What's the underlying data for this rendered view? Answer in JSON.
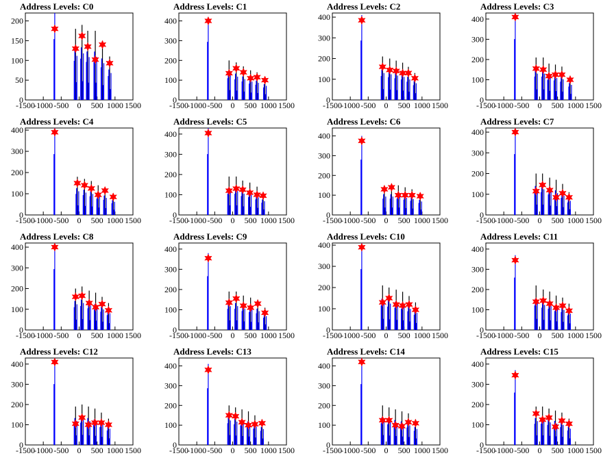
{
  "colors": {
    "histogram": "#0000ff",
    "histogram_peak": "#000000",
    "marker": "#ff0000",
    "axis": "#000000"
  },
  "chart_data": [
    {
      "type": "bar",
      "title": "Address Levels: C0",
      "xlim": [
        -1500,
        1500
      ],
      "ylim": [
        0,
        220
      ],
      "x_ticks": [
        "-1500",
        "-1000",
        "-500",
        "0",
        "500",
        "1000",
        "1500"
      ],
      "y_ticks": [
        0,
        50,
        100,
        150,
        200
      ],
      "peaks": [
        {
          "x": -680,
          "y": 180,
          "h": 220
        },
        {
          "x": -100,
          "y": 130,
          "h": 180
        },
        {
          "x": 80,
          "y": 162,
          "h": 190
        },
        {
          "x": 240,
          "y": 135,
          "h": 175
        },
        {
          "x": 450,
          "y": 102,
          "h": 175
        },
        {
          "x": 650,
          "y": 140,
          "h": 150
        },
        {
          "x": 850,
          "y": 93,
          "h": 110
        }
      ]
    },
    {
      "type": "bar",
      "title": "Address Levels: C1",
      "xlim": [
        -1500,
        1500
      ],
      "ylim": [
        0,
        440
      ],
      "x_ticks": [
        "-1500",
        "-1000",
        "-500",
        "0",
        "500",
        "1000",
        "1500"
      ],
      "y_ticks": [
        0,
        100,
        200,
        300,
        400
      ],
      "peaks": [
        {
          "x": -680,
          "y": 400,
          "h": 420
        },
        {
          "x": -100,
          "y": 135,
          "h": 200
        },
        {
          "x": 100,
          "y": 160,
          "h": 190
        },
        {
          "x": 300,
          "y": 140,
          "h": 170
        },
        {
          "x": 500,
          "y": 110,
          "h": 150
        },
        {
          "x": 680,
          "y": 115,
          "h": 140
        },
        {
          "x": 900,
          "y": 100,
          "h": 115
        }
      ]
    },
    {
      "type": "bar",
      "title": "Address Levels: C2",
      "xlim": [
        -1500,
        1500
      ],
      "ylim": [
        0,
        420
      ],
      "x_ticks": [
        "-1500",
        "-1000",
        "-500",
        "0",
        "500",
        "1000",
        "1500"
      ],
      "y_ticks": [
        0,
        100,
        200,
        300,
        400
      ],
      "peaks": [
        {
          "x": -680,
          "y": 385,
          "h": 410
        },
        {
          "x": -100,
          "y": 160,
          "h": 210
        },
        {
          "x": 100,
          "y": 145,
          "h": 200
        },
        {
          "x": 280,
          "y": 140,
          "h": 190
        },
        {
          "x": 460,
          "y": 130,
          "h": 180
        },
        {
          "x": 620,
          "y": 130,
          "h": 160
        },
        {
          "x": 800,
          "y": 105,
          "h": 130
        }
      ]
    },
    {
      "type": "bar",
      "title": "Address Levels: C3",
      "xlim": [
        -1500,
        1500
      ],
      "ylim": [
        0,
        430
      ],
      "x_ticks": [
        "-1500",
        "-1000",
        "-500",
        "0",
        "500",
        "1000",
        "1500"
      ],
      "y_ticks": [
        0,
        100,
        200,
        300,
        400
      ],
      "peaks": [
        {
          "x": -680,
          "y": 410,
          "h": 430
        },
        {
          "x": -100,
          "y": 155,
          "h": 210
        },
        {
          "x": 100,
          "y": 150,
          "h": 210
        },
        {
          "x": 260,
          "y": 118,
          "h": 180
        },
        {
          "x": 440,
          "y": 125,
          "h": 175
        },
        {
          "x": 620,
          "y": 125,
          "h": 165
        },
        {
          "x": 850,
          "y": 100,
          "h": 120
        }
      ]
    },
    {
      "type": "bar",
      "title": "Address Levels: C4",
      "xlim": [
        -1500,
        1500
      ],
      "ylim": [
        0,
        410
      ],
      "x_ticks": [
        "-1500",
        "-1000",
        "-500",
        "0",
        "500",
        "1000",
        "1500"
      ],
      "y_ticks": [
        0,
        100,
        200,
        300,
        400
      ],
      "peaks": [
        {
          "x": -680,
          "y": 390,
          "h": 410
        },
        {
          "x": -50,
          "y": 150,
          "h": 180
        },
        {
          "x": 150,
          "y": 140,
          "h": 170
        },
        {
          "x": 340,
          "y": 125,
          "h": 160
        },
        {
          "x": 530,
          "y": 95,
          "h": 140
        },
        {
          "x": 720,
          "y": 115,
          "h": 130
        },
        {
          "x": 950,
          "y": 85,
          "h": 100
        }
      ]
    },
    {
      "type": "bar",
      "title": "Address Levels: C5",
      "xlim": [
        -1500,
        1500
      ],
      "ylim": [
        0,
        430
      ],
      "x_ticks": [
        "-1500",
        "-1000",
        "-500",
        "0",
        "500",
        "1000",
        "1500"
      ],
      "y_ticks": [
        0,
        100,
        200,
        300,
        400
      ],
      "peaks": [
        {
          "x": -680,
          "y": 405,
          "h": 430
        },
        {
          "x": -100,
          "y": 120,
          "h": 190
        },
        {
          "x": 100,
          "y": 130,
          "h": 190
        },
        {
          "x": 280,
          "y": 125,
          "h": 170
        },
        {
          "x": 480,
          "y": 110,
          "h": 160
        },
        {
          "x": 680,
          "y": 100,
          "h": 140
        },
        {
          "x": 850,
          "y": 95,
          "h": 110
        }
      ]
    },
    {
      "type": "bar",
      "title": "Address Levels: C6",
      "xlim": [
        -1500,
        1500
      ],
      "ylim": [
        0,
        440
      ],
      "x_ticks": [
        "-1500",
        "-1000",
        "-500",
        "0",
        "500",
        "1000",
        "1500"
      ],
      "y_ticks": [
        0,
        100,
        200,
        300,
        400
      ],
      "peaks": [
        {
          "x": -680,
          "y": 375,
          "h": 400
        },
        {
          "x": -50,
          "y": 130,
          "h": 150
        },
        {
          "x": 150,
          "y": 140,
          "h": 150
        },
        {
          "x": 340,
          "y": 100,
          "h": 150
        },
        {
          "x": 530,
          "y": 100,
          "h": 140
        },
        {
          "x": 720,
          "y": 100,
          "h": 130
        },
        {
          "x": 950,
          "y": 95,
          "h": 110
        }
      ]
    },
    {
      "type": "bar",
      "title": "Address Levels: C7",
      "xlim": [
        -1500,
        1500
      ],
      "ylim": [
        0,
        420
      ],
      "x_ticks": [
        "-1500",
        "-1000",
        "-500",
        "0",
        "500",
        "1000",
        "1500"
      ],
      "y_ticks": [
        0,
        100,
        200,
        300,
        400
      ],
      "peaks": [
        {
          "x": -680,
          "y": 400,
          "h": 420
        },
        {
          "x": -100,
          "y": 115,
          "h": 200
        },
        {
          "x": 80,
          "y": 145,
          "h": 200
        },
        {
          "x": 280,
          "y": 120,
          "h": 180
        },
        {
          "x": 460,
          "y": 85,
          "h": 170
        },
        {
          "x": 640,
          "y": 105,
          "h": 150
        },
        {
          "x": 820,
          "y": 85,
          "h": 110
        }
      ]
    },
    {
      "type": "bar",
      "title": "Address Levels: C8",
      "xlim": [
        -1500,
        1500
      ],
      "ylim": [
        0,
        420
      ],
      "x_ticks": [
        "-1500",
        "-1000",
        "-500",
        "0",
        "500",
        "1000",
        "1500"
      ],
      "y_ticks": [
        0,
        100,
        200,
        300,
        400
      ],
      "peaks": [
        {
          "x": -680,
          "y": 400,
          "h": 420
        },
        {
          "x": -100,
          "y": 160,
          "h": 200
        },
        {
          "x": 80,
          "y": 165,
          "h": 210
        },
        {
          "x": 280,
          "y": 130,
          "h": 190
        },
        {
          "x": 460,
          "y": 110,
          "h": 180
        },
        {
          "x": 640,
          "y": 125,
          "h": 160
        },
        {
          "x": 820,
          "y": 95,
          "h": 130
        }
      ]
    },
    {
      "type": "bar",
      "title": "Address Levels: C9",
      "xlim": [
        -1500,
        1500
      ],
      "ylim": [
        0,
        430
      ],
      "x_ticks": [
        "-1500",
        "-1000",
        "-500",
        "0",
        "500",
        "1000",
        "1500"
      ],
      "y_ticks": [
        0,
        100,
        200,
        300,
        400
      ],
      "peaks": [
        {
          "x": -680,
          "y": 355,
          "h": 380
        },
        {
          "x": -100,
          "y": 135,
          "h": 190
        },
        {
          "x": 100,
          "y": 155,
          "h": 190
        },
        {
          "x": 300,
          "y": 120,
          "h": 170
        },
        {
          "x": 500,
          "y": 110,
          "h": 160
        },
        {
          "x": 700,
          "y": 130,
          "h": 150
        },
        {
          "x": 900,
          "y": 85,
          "h": 110
        }
      ]
    },
    {
      "type": "bar",
      "title": "Address Levels: C10",
      "xlim": [
        -1500,
        1500
      ],
      "ylim": [
        0,
        410
      ],
      "x_ticks": [
        "-1500",
        "-1000",
        "-500",
        "0",
        "500",
        "1000",
        "1500"
      ],
      "y_ticks": [
        0,
        100,
        200,
        300,
        400
      ],
      "peaks": [
        {
          "x": -680,
          "y": 390,
          "h": 410
        },
        {
          "x": -100,
          "y": 130,
          "h": 210
        },
        {
          "x": 80,
          "y": 150,
          "h": 200
        },
        {
          "x": 280,
          "y": 120,
          "h": 190
        },
        {
          "x": 460,
          "y": 115,
          "h": 180
        },
        {
          "x": 640,
          "y": 120,
          "h": 160
        },
        {
          "x": 820,
          "y": 95,
          "h": 130
        }
      ]
    },
    {
      "type": "bar",
      "title": "Address Levels: C11",
      "xlim": [
        -1500,
        1500
      ],
      "ylim": [
        0,
        430
      ],
      "x_ticks": [
        "-1500",
        "-1000",
        "-500",
        "0",
        "500",
        "1000",
        "1500"
      ],
      "y_ticks": [
        0,
        100,
        200,
        300,
        400
      ],
      "peaks": [
        {
          "x": -680,
          "y": 345,
          "h": 370
        },
        {
          "x": -100,
          "y": 140,
          "h": 220
        },
        {
          "x": 100,
          "y": 145,
          "h": 200
        },
        {
          "x": 280,
          "y": 130,
          "h": 190
        },
        {
          "x": 460,
          "y": 110,
          "h": 170
        },
        {
          "x": 640,
          "y": 120,
          "h": 160
        },
        {
          "x": 820,
          "y": 95,
          "h": 130
        }
      ]
    },
    {
      "type": "bar",
      "title": "Address Levels: C12",
      "xlim": [
        -1500,
        1500
      ],
      "ylim": [
        0,
        430
      ],
      "x_ticks": [
        "-1500",
        "-1000",
        "-500",
        "0",
        "500",
        "1000",
        "1500"
      ],
      "y_ticks": [
        0,
        100,
        200,
        300,
        400
      ],
      "peaks": [
        {
          "x": -680,
          "y": 410,
          "h": 430
        },
        {
          "x": -100,
          "y": 105,
          "h": 190
        },
        {
          "x": 80,
          "y": 135,
          "h": 200
        },
        {
          "x": 260,
          "y": 100,
          "h": 190
        },
        {
          "x": 440,
          "y": 110,
          "h": 180
        },
        {
          "x": 620,
          "y": 110,
          "h": 160
        },
        {
          "x": 820,
          "y": 100,
          "h": 130
        }
      ]
    },
    {
      "type": "bar",
      "title": "Address Levels: C13",
      "xlim": [
        -1500,
        1500
      ],
      "ylim": [
        0,
        440
      ],
      "x_ticks": [
        "-1500",
        "-1000",
        "-500",
        "0",
        "500",
        "1000",
        "1500"
      ],
      "y_ticks": [
        0,
        100,
        200,
        300,
        400
      ],
      "peaks": [
        {
          "x": -680,
          "y": 380,
          "h": 410
        },
        {
          "x": -100,
          "y": 150,
          "h": 200
        },
        {
          "x": 80,
          "y": 145,
          "h": 190
        },
        {
          "x": 260,
          "y": 115,
          "h": 180
        },
        {
          "x": 440,
          "y": 100,
          "h": 170
        },
        {
          "x": 620,
          "y": 105,
          "h": 150
        },
        {
          "x": 820,
          "y": 110,
          "h": 130
        }
      ]
    },
    {
      "type": "bar",
      "title": "Address Levels: C14",
      "xlim": [
        -1500,
        1500
      ],
      "ylim": [
        0,
        440
      ],
      "x_ticks": [
        "-1500",
        "-1000",
        "-500",
        "0",
        "500",
        "1000",
        "1500"
      ],
      "y_ticks": [
        0,
        100,
        200,
        300,
        400
      ],
      "peaks": [
        {
          "x": -680,
          "y": 420,
          "h": 440
        },
        {
          "x": -100,
          "y": 125,
          "h": 200
        },
        {
          "x": 80,
          "y": 125,
          "h": 190
        },
        {
          "x": 260,
          "y": 100,
          "h": 180
        },
        {
          "x": 440,
          "y": 95,
          "h": 170
        },
        {
          "x": 620,
          "y": 115,
          "h": 160
        },
        {
          "x": 820,
          "y": 110,
          "h": 130
        }
      ]
    },
    {
      "type": "bar",
      "title": "Address Levels: C15",
      "xlim": [
        -1500,
        1500
      ],
      "ylim": [
        0,
        430
      ],
      "x_ticks": [
        "-1500",
        "-1000",
        "-500",
        "0",
        "500",
        "1000",
        "1500"
      ],
      "y_ticks": [
        0,
        100,
        200,
        300,
        400
      ],
      "peaks": [
        {
          "x": -680,
          "y": 345,
          "h": 370
        },
        {
          "x": -100,
          "y": 155,
          "h": 190
        },
        {
          "x": 80,
          "y": 125,
          "h": 190
        },
        {
          "x": 260,
          "y": 135,
          "h": 180
        },
        {
          "x": 440,
          "y": 90,
          "h": 170
        },
        {
          "x": 620,
          "y": 120,
          "h": 160
        },
        {
          "x": 820,
          "y": 105,
          "h": 130
        }
      ]
    }
  ]
}
